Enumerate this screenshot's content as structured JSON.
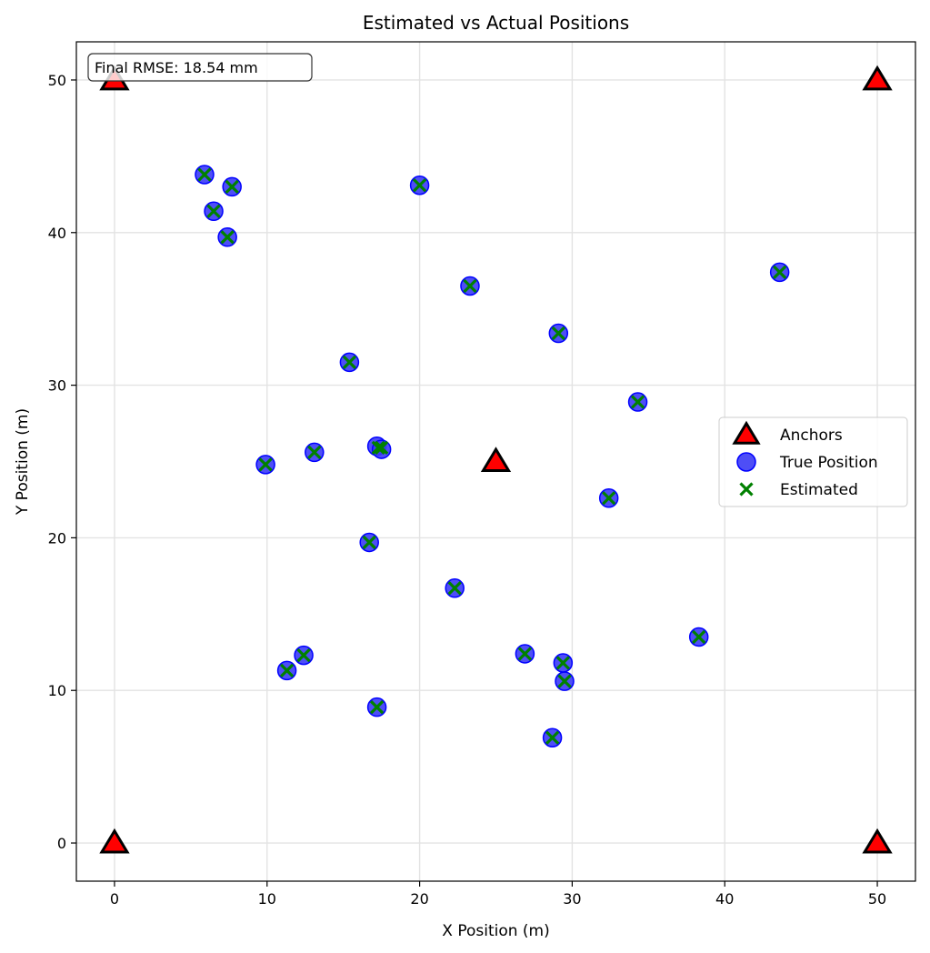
{
  "chart_data": {
    "type": "scatter",
    "title": "Estimated vs Actual Positions",
    "xlabel": "X Position (m)",
    "ylabel": "Y Position (m)",
    "xlim": [
      -2.5,
      52.5
    ],
    "ylim": [
      -2.5,
      52.5
    ],
    "xticks": [
      0,
      10,
      20,
      30,
      40,
      50
    ],
    "yticks": [
      0,
      10,
      20,
      30,
      40,
      50
    ],
    "grid": true,
    "legend_position": "center-right",
    "annotation": "Final RMSE: 18.54 mm",
    "colors": {
      "anchor_fill": "#ff0000",
      "anchor_edge": "#000000",
      "true_fill": "#3b3bf5",
      "true_edge": "#0000ff",
      "estimated": "#008000"
    },
    "series": [
      {
        "name": "Anchors",
        "marker": "triangle",
        "points": [
          [
            0,
            0
          ],
          [
            50,
            0
          ],
          [
            0,
            50
          ],
          [
            50,
            50
          ],
          [
            25,
            25
          ]
        ]
      },
      {
        "name": "True Position",
        "marker": "circle",
        "points": [
          [
            5.9,
            43.8
          ],
          [
            7.7,
            43.0
          ],
          [
            6.5,
            41.4
          ],
          [
            7.4,
            39.7
          ],
          [
            20.0,
            43.1
          ],
          [
            43.6,
            37.4
          ],
          [
            23.3,
            36.5
          ],
          [
            29.1,
            33.4
          ],
          [
            15.4,
            31.5
          ],
          [
            34.3,
            28.9
          ],
          [
            9.9,
            24.8
          ],
          [
            13.1,
            25.6
          ],
          [
            17.2,
            26.0
          ],
          [
            17.5,
            25.8
          ],
          [
            32.4,
            22.6
          ],
          [
            16.7,
            19.7
          ],
          [
            22.3,
            16.7
          ],
          [
            12.4,
            12.3
          ],
          [
            11.3,
            11.3
          ],
          [
            26.9,
            12.4
          ],
          [
            29.4,
            11.8
          ],
          [
            29.5,
            10.6
          ],
          [
            38.3,
            13.5
          ],
          [
            17.2,
            8.9
          ],
          [
            28.7,
            6.9
          ]
        ]
      },
      {
        "name": "Estimated",
        "marker": "x",
        "points": [
          [
            5.9,
            43.8
          ],
          [
            7.7,
            43.0
          ],
          [
            6.5,
            41.4
          ],
          [
            7.4,
            39.7
          ],
          [
            20.0,
            43.1
          ],
          [
            43.6,
            37.4
          ],
          [
            23.3,
            36.5
          ],
          [
            29.1,
            33.4
          ],
          [
            15.4,
            31.5
          ],
          [
            34.3,
            28.9
          ],
          [
            9.9,
            24.8
          ],
          [
            13.1,
            25.6
          ],
          [
            17.3,
            25.9
          ],
          [
            17.5,
            25.9
          ],
          [
            32.4,
            22.6
          ],
          [
            16.7,
            19.7
          ],
          [
            22.3,
            16.7
          ],
          [
            12.4,
            12.3
          ],
          [
            11.3,
            11.3
          ],
          [
            26.9,
            12.4
          ],
          [
            29.4,
            11.8
          ],
          [
            29.5,
            10.6
          ],
          [
            38.3,
            13.5
          ],
          [
            17.2,
            8.9
          ],
          [
            28.7,
            6.9
          ]
        ]
      }
    ]
  }
}
